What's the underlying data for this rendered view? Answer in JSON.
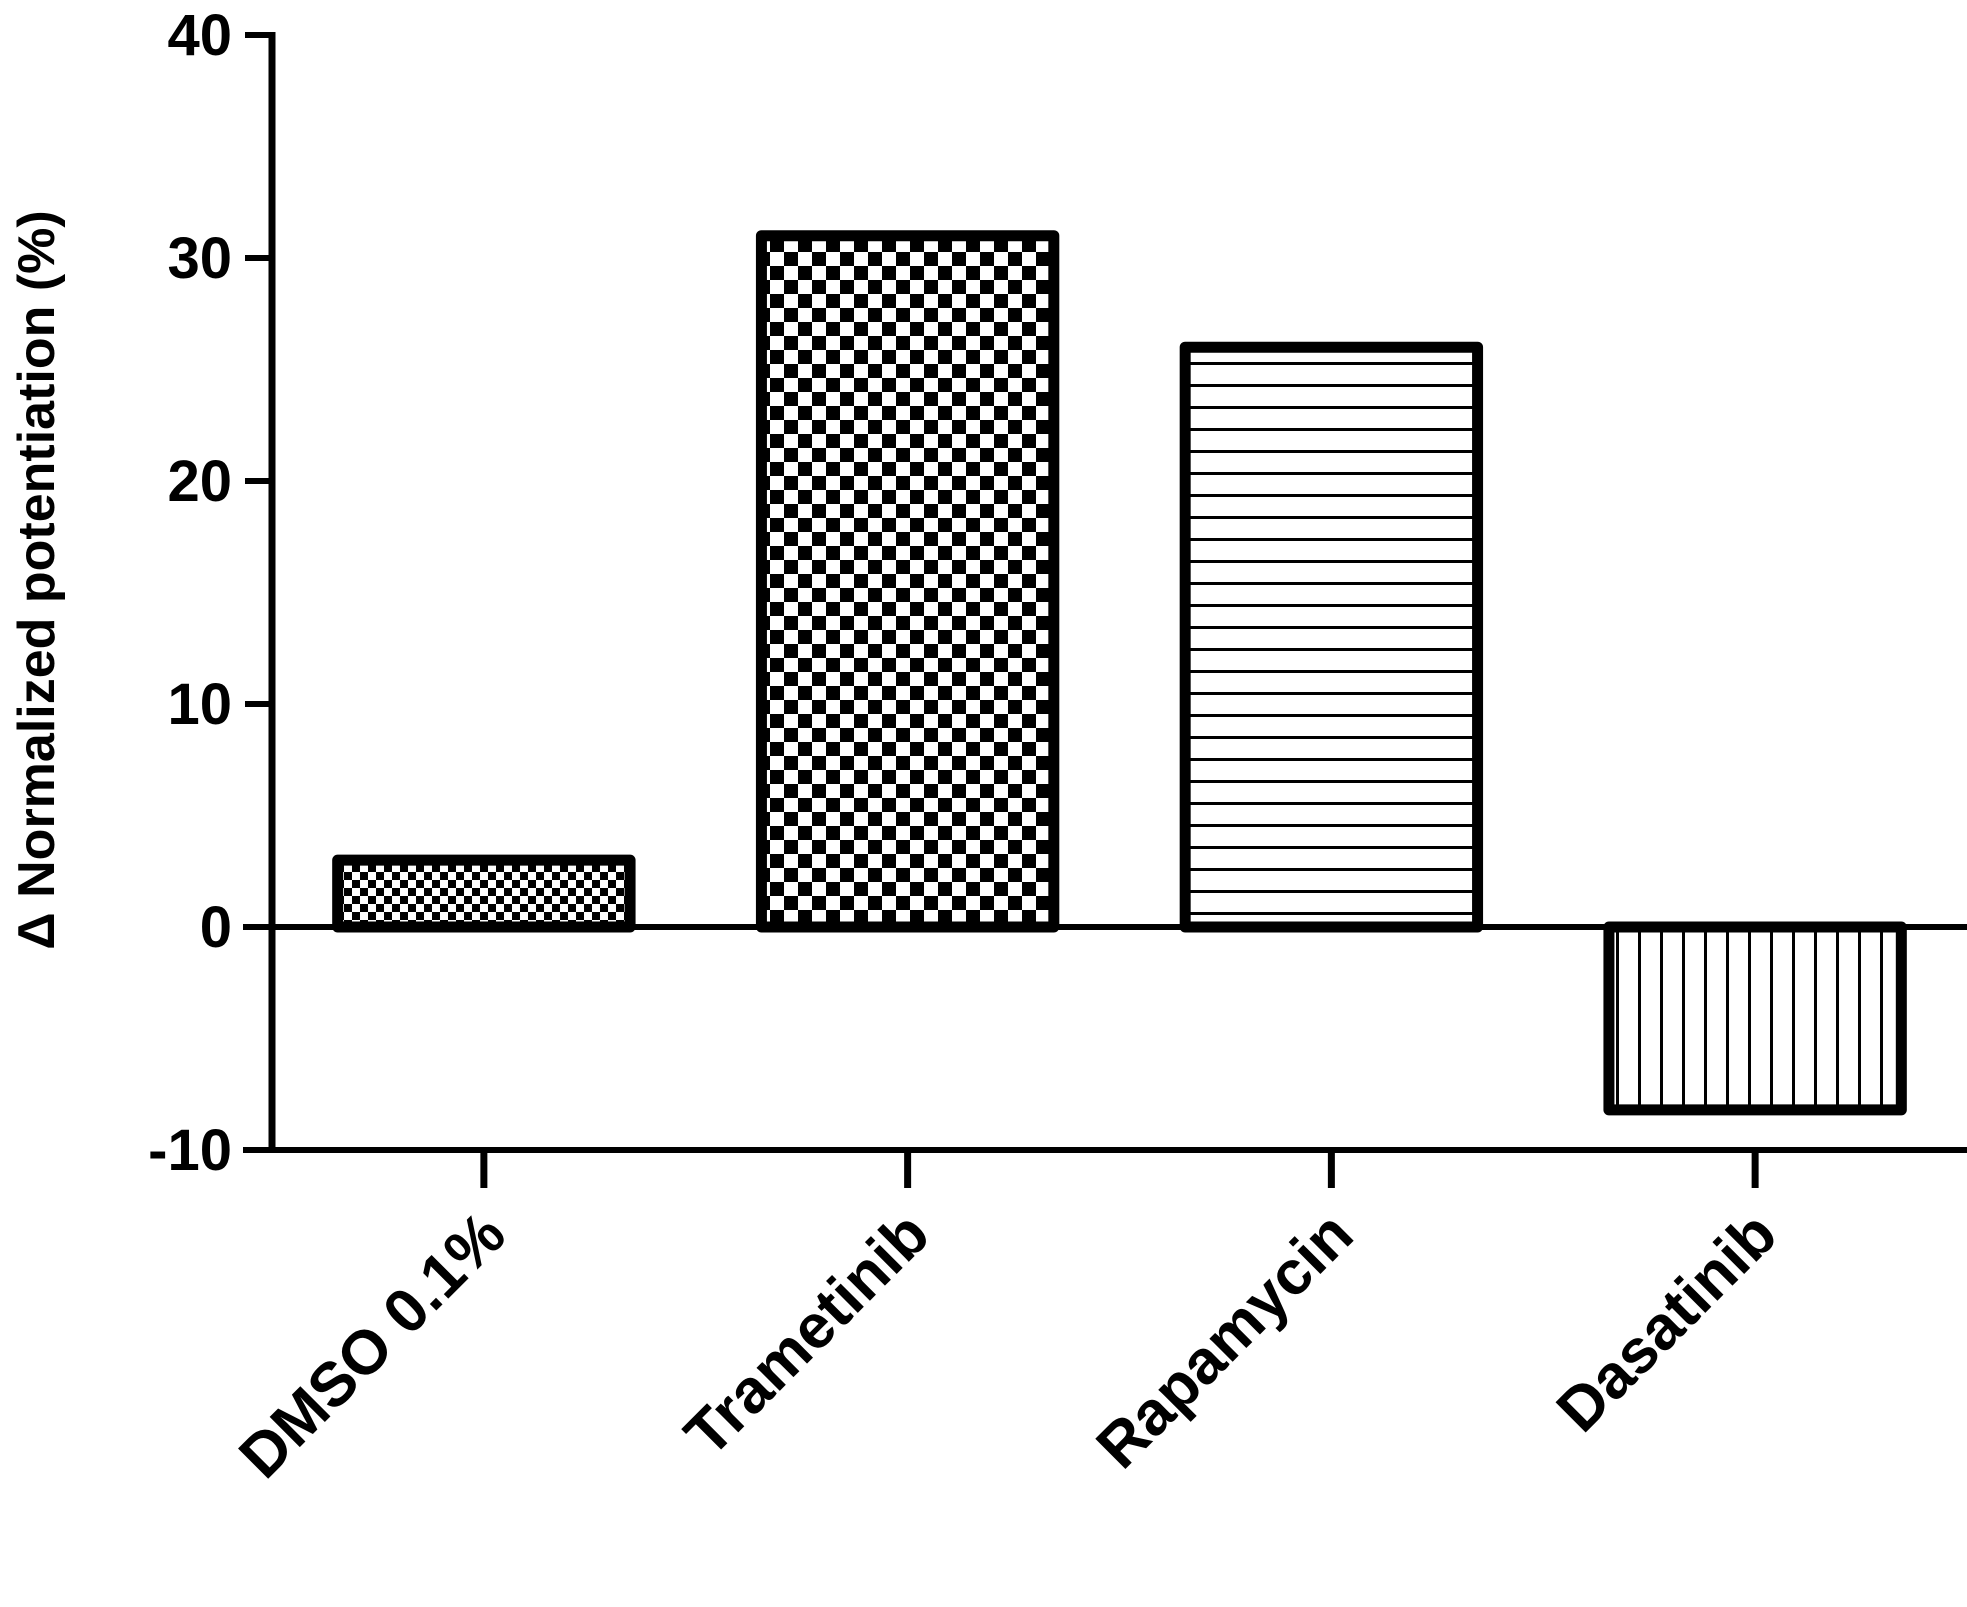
{
  "chart_data": {
    "type": "bar",
    "title": "",
    "xlabel": "",
    "ylabel": "Δ Normalized potentiation (%)",
    "categories": [
      "DMSO 0.1%",
      "Trametinib",
      "Rapamycin",
      "Dasatinib"
    ],
    "values": [
      3,
      31,
      26,
      -8.2
    ],
    "ylim": [
      -10,
      40
    ],
    "yticks": [
      "40",
      "30",
      "20",
      "10",
      "0",
      "-10"
    ],
    "grid": false,
    "legend": "none",
    "patterns": [
      "fine-checker",
      "coarse-checker",
      "horizontal-lines",
      "vertical-lines"
    ],
    "colors": {
      "ink": "#000000",
      "background": "#ffffff"
    }
  }
}
